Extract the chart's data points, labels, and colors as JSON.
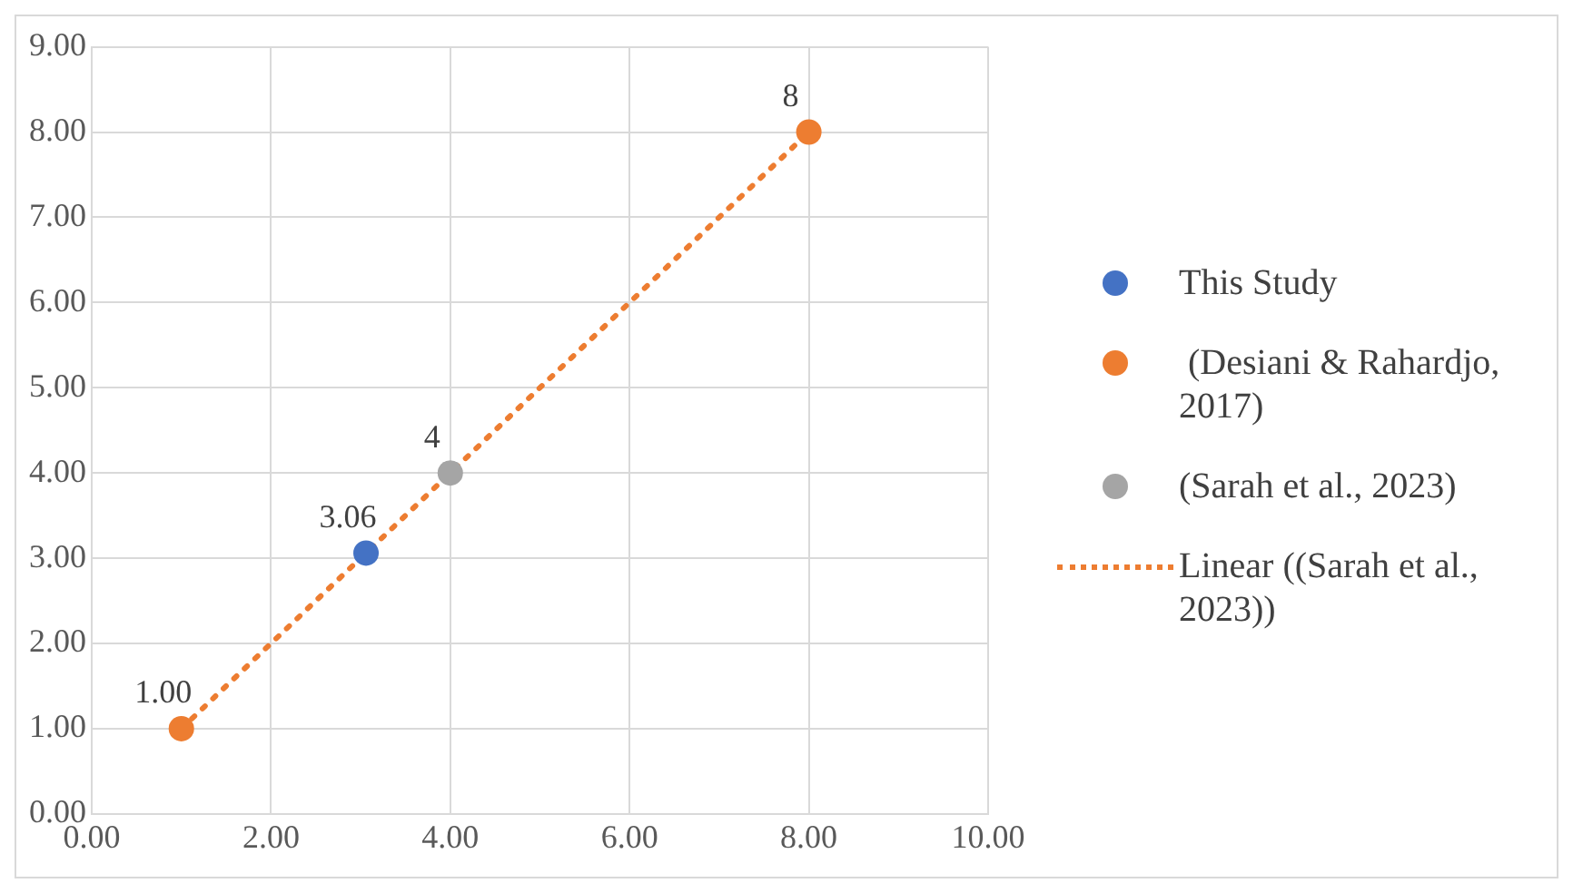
{
  "chart_data": {
    "type": "scatter",
    "xlim": [
      0,
      10
    ],
    "ylim": [
      0,
      9
    ],
    "xticks": [
      {
        "value": 0,
        "label": "0.00"
      },
      {
        "value": 2,
        "label": "2.00"
      },
      {
        "value": 4,
        "label": "4.00"
      },
      {
        "value": 6,
        "label": "6.00"
      },
      {
        "value": 8,
        "label": "8.00"
      },
      {
        "value": 10,
        "label": "10.00"
      }
    ],
    "yticks": [
      {
        "value": 0,
        "label": "0.00"
      },
      {
        "value": 1,
        "label": "1.00"
      },
      {
        "value": 2,
        "label": "2.00"
      },
      {
        "value": 3,
        "label": "3.00"
      },
      {
        "value": 4,
        "label": "4.00"
      },
      {
        "value": 5,
        "label": "5.00"
      },
      {
        "value": 6,
        "label": "6.00"
      },
      {
        "value": 7,
        "label": "7.00"
      },
      {
        "value": 8,
        "label": "8.00"
      },
      {
        "value": 9,
        "label": "9.00"
      }
    ],
    "grid": true,
    "legend": "right",
    "marker": "circle",
    "series": [
      {
        "name": "This Study",
        "color": "#4472c4",
        "x": [
          3.06
        ],
        "values": [
          3.06
        ],
        "value_labels": [
          "3.06"
        ]
      },
      {
        "name": " (Desiani & Rahardjo, 2017)",
        "color": "#ed7d31",
        "x": [
          1,
          8
        ],
        "values": [
          1,
          8
        ],
        "value_labels": [
          "1.00",
          "8"
        ]
      },
      {
        "name": "(Sarah et al., 2023)",
        "color": "#a5a5a5",
        "x": [
          4
        ],
        "values": [
          4
        ],
        "value_labels": [
          "4"
        ]
      },
      {
        "name": "Linear ((Sarah et al., 2023))",
        "type": "line",
        "color": "#ed7d31",
        "line_style": "dotted",
        "marker": "none",
        "x": [
          1,
          8
        ],
        "values": [
          1,
          8
        ]
      }
    ]
  }
}
